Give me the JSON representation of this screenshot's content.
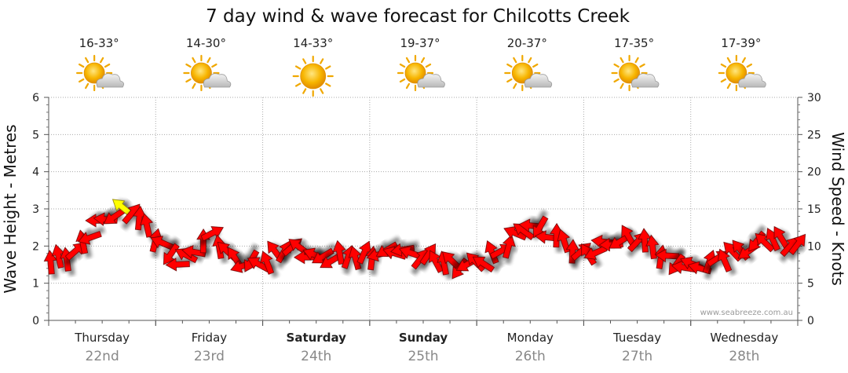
{
  "chart_data": {
    "type": "line",
    "title": "7 day wind & wave forecast for Chilcotts Creek",
    "ylabel_left": "Wave Height - Metres",
    "ylabel_right": "Wind Speed - Knots",
    "ylim_left": [
      0,
      6
    ],
    "ylim_right": [
      0,
      30
    ],
    "yticks_left": [
      "0",
      "1",
      "2",
      "3",
      "4",
      "5",
      "6"
    ],
    "yticks_right": [
      "0",
      "5",
      "10",
      "15",
      "20",
      "25",
      "30"
    ],
    "grid": true,
    "credit": "www.seabreeze.com.au",
    "days": [
      {
        "name": "Thursday",
        "date": "22nd",
        "temp": "16-33°",
        "weather": "partly-cloudy",
        "bold": false
      },
      {
        "name": "Friday",
        "date": "23rd",
        "temp": "14-30°",
        "weather": "partly-cloudy",
        "bold": false
      },
      {
        "name": "Saturday",
        "date": "24th",
        "temp": "14-33°",
        "weather": "sunny",
        "bold": true
      },
      {
        "name": "Sunday",
        "date": "25th",
        "temp": "19-37°",
        "weather": "partly-cloudy",
        "bold": true
      },
      {
        "name": "Monday",
        "date": "26th",
        "temp": "20-37°",
        "weather": "partly-cloudy",
        "bold": false
      },
      {
        "name": "Tuesday",
        "date": "27th",
        "temp": "17-35°",
        "weather": "partly-cloudy",
        "bold": false
      },
      {
        "name": "Wednesday",
        "date": "28th",
        "temp": "17-39°",
        "weather": "partly-cloudy",
        "bold": false
      }
    ],
    "series": [
      {
        "name": "Wind Speed (knots)",
        "x_days": [
          0.0,
          0.25,
          0.5,
          0.75,
          1.0,
          1.25,
          1.5,
          1.75,
          2.0,
          2.25,
          2.5,
          2.75,
          3.0,
          3.25,
          3.5,
          3.75,
          4.0,
          4.25,
          4.5,
          4.75,
          5.0,
          5.25,
          5.5,
          5.75,
          6.0,
          6.25,
          6.5,
          6.75,
          7.0
        ],
        "values": [
          7.5,
          9,
          13.5,
          15,
          11,
          7.5,
          11.5,
          8,
          7.5,
          10,
          8.5,
          8.5,
          8.5,
          9.5,
          8.5,
          7.5,
          7.5,
          9.5,
          13,
          11,
          8.5,
          10.5,
          11,
          8.5,
          7,
          8,
          9.5,
          11,
          10
        ],
        "colors_by_threshold": {
          "below_15": "#ff0000",
          "15_to_20": "#ffff00"
        }
      }
    ]
  }
}
